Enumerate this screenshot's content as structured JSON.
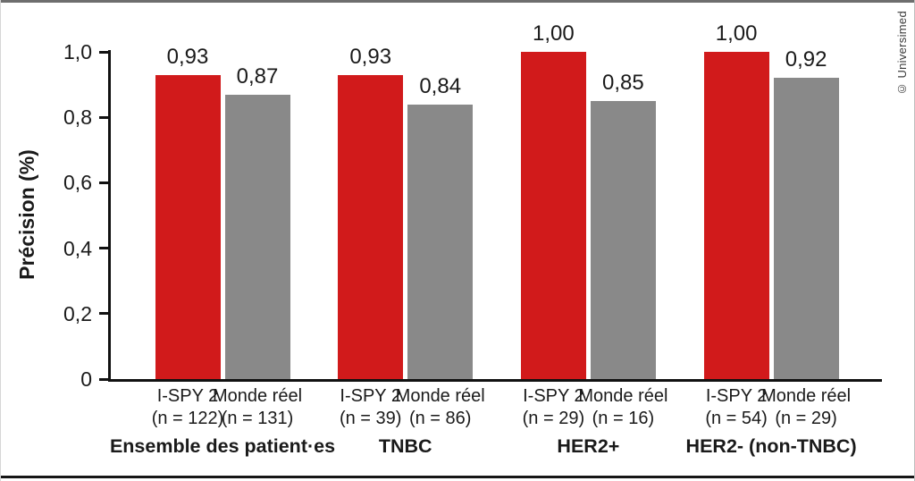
{
  "copyright": "© Universimed",
  "chart_data": {
    "type": "bar",
    "title": "",
    "xlabel": "",
    "ylabel": "Précision (%)",
    "ylim": [
      0,
      1.0
    ],
    "grid": false,
    "legend": "none (series labeled under each bar)",
    "yticks": [
      "0",
      "0,2",
      "0,4",
      "0,6",
      "0,8",
      "1,0"
    ],
    "ytick_values": [
      0,
      0.2,
      0.4,
      0.6,
      0.8,
      1.0
    ],
    "series_colors": {
      "I-SPY 2": "#d11a1b",
      "Monde réel": "#898989"
    },
    "groups": [
      {
        "label": "Ensemble des patient·es",
        "bars": [
          {
            "series": "I-SPY 2",
            "n_label": "(n = 122)",
            "value": 0.93,
            "display": "0,93"
          },
          {
            "series": "Monde réel",
            "n_label": "(n = 131)",
            "value": 0.87,
            "display": "0,87"
          }
        ]
      },
      {
        "label": "TNBC",
        "bars": [
          {
            "series": "I-SPY 2",
            "n_label": "(n = 39)",
            "value": 0.93,
            "display": "0,93"
          },
          {
            "series": "Monde réel",
            "n_label": "(n = 86)",
            "value": 0.84,
            "display": "0,84"
          }
        ]
      },
      {
        "label": "HER2+",
        "bars": [
          {
            "series": "I-SPY 2",
            "n_label": "(n = 29)",
            "value": 1.0,
            "display": "1,00"
          },
          {
            "series": "Monde réel",
            "n_label": "(n = 16)",
            "value": 0.85,
            "display": "0,85"
          }
        ]
      },
      {
        "label": "HER2- (non-TNBC)",
        "bars": [
          {
            "series": "I-SPY 2",
            "n_label": "(n = 54)",
            "value": 1.0,
            "display": "1,00"
          },
          {
            "series": "Monde réel",
            "n_label": "(n = 29)",
            "value": 0.92,
            "display": "0,92"
          }
        ]
      }
    ]
  }
}
